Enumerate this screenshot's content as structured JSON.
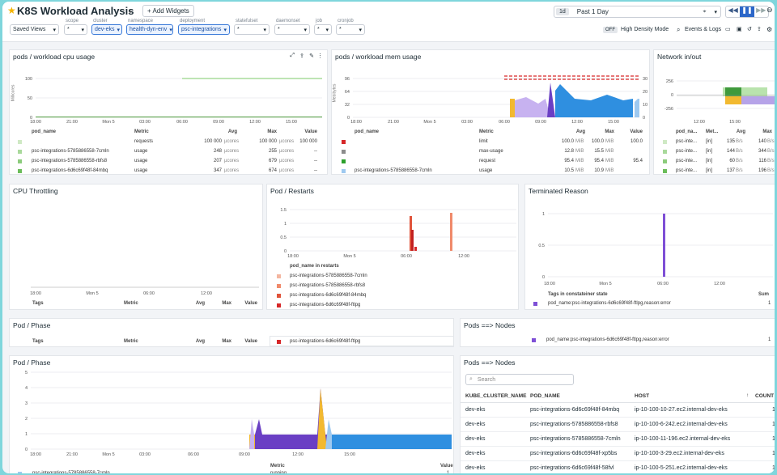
{
  "header": {
    "title": "K8S Workload Analysis",
    "add_widgets": "+ Add Widgets",
    "time_badge": "1d",
    "time_range": "Past 1 Day",
    "off_badge": "OFF",
    "high_density": "High Density Mode",
    "events_logs": "Events & Logs"
  },
  "filters": {
    "saved_views": "Saved Views",
    "items": [
      {
        "label": "scope",
        "value": "*",
        "active": false
      },
      {
        "label": "cluster",
        "value": "dev-eks",
        "active": true
      },
      {
        "label": "namespace",
        "value": "health-dyn-env",
        "active": true
      },
      {
        "label": "deployment",
        "value": "psc-integrations",
        "active": true
      },
      {
        "label": "statefulset",
        "value": "*",
        "active": false
      },
      {
        "label": "daemonset",
        "value": "*",
        "active": false
      },
      {
        "label": "job",
        "value": "*",
        "active": false
      },
      {
        "label": "cronjob",
        "value": "*",
        "active": false
      }
    ]
  },
  "cpu": {
    "title": "pods / workload cpu usage",
    "yaxis": "Millicores",
    "yticks": [
      "100",
      "50",
      "0"
    ],
    "xticks": [
      "18:00",
      "21:00",
      "Mon 5",
      "03:00",
      "06:00",
      "09:00",
      "12:00",
      "15:00"
    ],
    "cols": [
      "pod_name",
      "Metric",
      "Avg",
      "Max",
      "Value"
    ],
    "rows": [
      {
        "pod": "",
        "metric": "requests",
        "avg": "100 000",
        "unit": "µcores",
        "max": "100 000",
        "value": "100 000",
        "color": "#cfe9c4"
      },
      {
        "pod": "psc-integrations-5785886558-7cmln",
        "metric": "usage",
        "avg": "248",
        "unit": "µcores",
        "max": "255",
        "value": "--",
        "color": "#a9d99b"
      },
      {
        "pod": "psc-integrations-5785886558-rbfs8",
        "metric": "usage",
        "avg": "207",
        "unit": "µcores",
        "max": "679",
        "value": "--",
        "color": "#8ccc7c"
      },
      {
        "pod": "psc-integrations-6d6c69f48f-84mbq",
        "metric": "usage",
        "avg": "347",
        "unit": "µcores",
        "max": "674",
        "value": "--",
        "color": "#6bbd5a"
      }
    ]
  },
  "mem": {
    "title": "pods / workload mem usage",
    "yaxis": "Mebibytes",
    "yticks": [
      "96",
      "64",
      "32",
      "0"
    ],
    "y2ticks": [
      "30",
      "20",
      "10",
      "0"
    ],
    "xticks": [
      "18:00",
      "21:00",
      "Mon 5",
      "03:00",
      "06:00",
      "09:00",
      "12:00",
      "15:00"
    ],
    "cols": [
      "pod_name",
      "Metric",
      "Avg",
      "Max",
      "Value"
    ],
    "rows": [
      {
        "pod": "",
        "metric": "limit",
        "avg": "100.0",
        "unit": "MiB",
        "max": "100.0",
        "value": "100.0",
        "color": "#d62728"
      },
      {
        "pod": "",
        "metric": "max-usage",
        "avg": "12.8",
        "unit": "MiB",
        "max": "15.5",
        "value": "",
        "color": "#8c8c8c"
      },
      {
        "pod": "",
        "metric": "request",
        "avg": "95.4",
        "unit": "MiB",
        "max": "95.4",
        "value": "95.4",
        "color": "#2ca02c"
      },
      {
        "pod": "psc-integrations-5785886558-7cmln",
        "metric": "usage",
        "avg": "10.5",
        "unit": "MiB",
        "max": "10.9",
        "value": "",
        "color": "#9ec9f0"
      }
    ]
  },
  "net": {
    "title": "Network in/out",
    "yticks": [
      "256",
      "0",
      "-256"
    ],
    "xticks": [
      "12:00",
      "15:00"
    ],
    "cols": [
      "pod_na...",
      "Met...",
      "Avg",
      "Max"
    ],
    "rows": [
      {
        "pod": "psc-inte...",
        "metric": "[in]",
        "avg": "135",
        "max": "140",
        "unit": "B/s",
        "color": "#cfe9c4"
      },
      {
        "pod": "psc-inte...",
        "metric": "[in]",
        "avg": "144",
        "max": "344",
        "unit": "B/s",
        "color": "#a9d99b"
      },
      {
        "pod": "psc-inte...",
        "metric": "[in]",
        "avg": "60",
        "max": "116",
        "unit": "B/s",
        "color": "#8ccc7c"
      },
      {
        "pod": "psc-inte...",
        "metric": "[in]",
        "avg": "137",
        "max": "196",
        "unit": "B/s",
        "color": "#6bbd5a"
      }
    ]
  },
  "throttle": {
    "title": "CPU Throttling",
    "xticks": [
      "18:00",
      "Mon 5",
      "06:00",
      "12:00"
    ],
    "cols": [
      "Tags",
      "Metric",
      "Avg",
      "Max",
      "Value"
    ]
  },
  "restarts": {
    "title": "Pod / Restarts",
    "yticks": [
      "1.5",
      "1",
      "0.5",
      "0"
    ],
    "xticks": [
      "18:00",
      "Mon 5",
      "06:00",
      "12:00"
    ],
    "legend_title": "pod_name in restarts",
    "legend": [
      {
        "label": "psc-integrations-5785886558-7cmln",
        "color": "#f4b6a0"
      },
      {
        "label": "psc-integrations-5785886558-rbfs8",
        "color": "#f08a6b"
      },
      {
        "label": "psc-integrations-6d6c69f48f-84mbq",
        "color": "#e0533a"
      },
      {
        "label": "psc-integrations-6d6c69f48f-ftlpg",
        "color": "#d62728"
      }
    ]
  },
  "terminated": {
    "title": "Terminated Reason",
    "yticks": [
      "1",
      "0.5",
      "0"
    ],
    "xticks": [
      "18:00",
      "Mon 5",
      "06:00",
      "12:00"
    ],
    "legend_title": "Tags in constateiner state",
    "sum_label": "Sum",
    "legend": [
      {
        "label": "pod_name:psc-integrations-6d6c69f48f-ftlpg,reason:error",
        "value": "1",
        "color": "#7e4fd6"
      }
    ]
  },
  "phase_a": {
    "title": "Pod / Phase",
    "cols": [
      "Tags",
      "Metric",
      "Avg",
      "Max",
      "Value"
    ]
  },
  "restarts_overflow": {
    "label": "psc-integrations-6d6c69f48f-ftlpg",
    "color": "#d62728"
  },
  "nodes_a": {
    "title": "Pods ==> Nodes",
    "row_label": "pod_name:psc-integrations-6d6c69f48f-ftlpg,reason:error",
    "row_value": "1",
    "color": "#7e4fd6"
  },
  "phase": {
    "title": "Pod / Phase",
    "yticks": [
      "5",
      "4",
      "3",
      "2",
      "1",
      "0"
    ],
    "xticks": [
      "18:00",
      "21:00",
      "Mon 5",
      "03:00",
      "06:00",
      "09:00",
      "12:00",
      "15:00"
    ],
    "row": {
      "pod": "psc-integrations-5785886558-7cmln",
      "metric": "running",
      "value": "1"
    },
    "metric_col": "Metric",
    "value_col": "Value"
  },
  "nodes": {
    "title": "Pods ==> Nodes",
    "search_placeholder": "Search",
    "cols": [
      "KUBE_CLUSTER_NAME",
      "POD_NAME",
      "HOST",
      "COUNT"
    ],
    "rows": [
      {
        "cluster": "dev-eks",
        "pod": "psc-integrations-6d6c69f48f-84mbq",
        "host": "ip-10-100-10-27.ec2.internal-dev-eks",
        "count": "1"
      },
      {
        "cluster": "dev-eks",
        "pod": "psc-integrations-5785886558-rbfs8",
        "host": "ip-10-100-6-242.ec2.internal-dev-eks",
        "count": "1"
      },
      {
        "cluster": "dev-eks",
        "pod": "psc-integrations-5785886558-7cmln",
        "host": "ip-10-100-11-196.ec2.internal-dev-eks",
        "count": "1"
      },
      {
        "cluster": "dev-eks",
        "pod": "psc-integrations-6d6c69f48f-xp5bs",
        "host": "ip-10-100-3-29.ec2.internal-dev-eks",
        "count": "1"
      },
      {
        "cluster": "dev-eks",
        "pod": "psc-integrations-6d6c69f48f-58fvl",
        "host": "ip-10-100-5-251.ec2.internal-dev-eks",
        "count": "1"
      }
    ]
  }
}
